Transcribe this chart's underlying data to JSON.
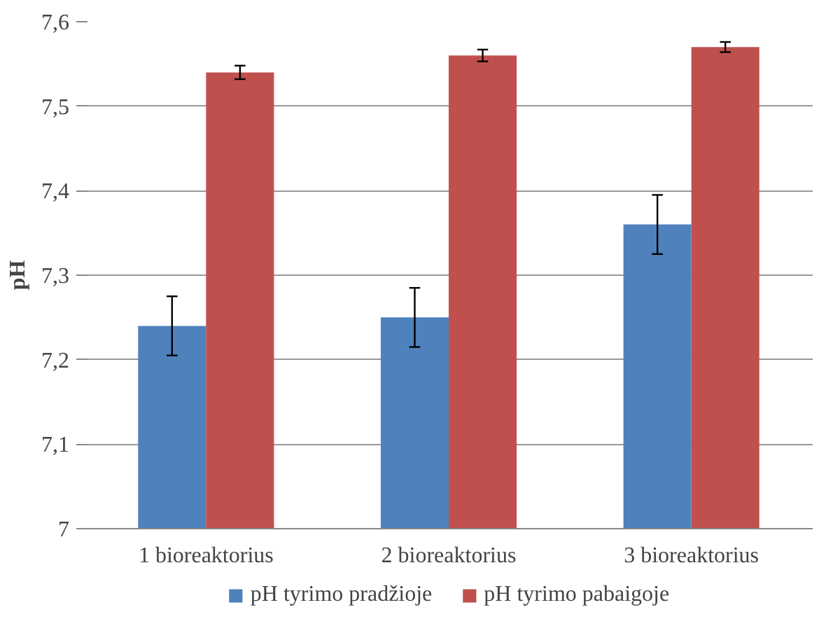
{
  "chart_data": {
    "type": "bar",
    "ylabel": "pH",
    "categories": [
      "1 bioreaktorius",
      "2 bioreaktorius",
      "3 bioreaktorius"
    ],
    "series": [
      {
        "name": "pH tyrimo pradžioje",
        "color": "#4f81bd",
        "values": [
          7.24,
          7.25,
          7.36
        ],
        "errors": [
          0.035,
          0.035,
          0.035
        ]
      },
      {
        "name": "pH tyrimo pabaigoje",
        "color": "#c0504d",
        "values": [
          7.54,
          7.56,
          7.57
        ],
        "errors": [
          0.008,
          0.007,
          0.006
        ]
      }
    ],
    "ylim": [
      7,
      7.6
    ],
    "yticks": [
      {
        "value": 7,
        "label": "7"
      },
      {
        "value": 7.1,
        "label": "7,1"
      },
      {
        "value": 7.2,
        "label": "7,2"
      },
      {
        "value": 7.3,
        "label": "7,3"
      },
      {
        "value": 7.4,
        "label": "7,4"
      },
      {
        "value": 7.5,
        "label": "7,5"
      },
      {
        "value": 7.6,
        "label": "7,6"
      }
    ],
    "grid": "y",
    "legend": "bottom"
  }
}
